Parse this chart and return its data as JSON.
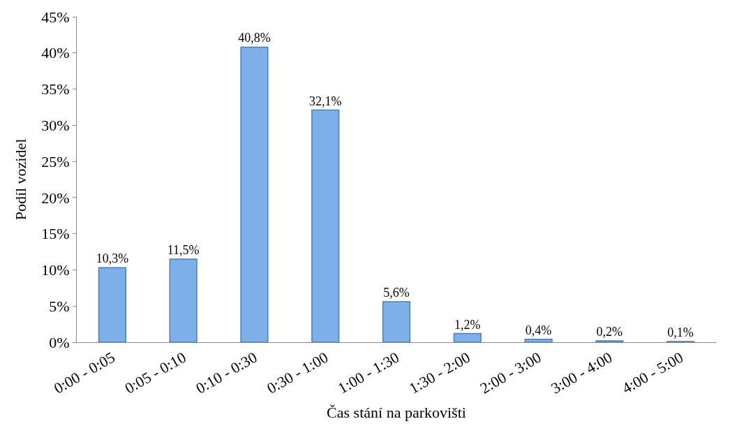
{
  "chart_data": {
    "type": "bar",
    "xlabel": "Čas stání na parkovišti",
    "ylabel": "Podíl vozidel",
    "categories": [
      "0:00 - 0:05",
      "0:05 - 0:10",
      "0:10 - 0:30",
      "0:30 - 1:00",
      "1:00 - 1:30",
      "1:30 - 2:00",
      "2:00 - 3:00",
      "3:00 - 4:00",
      "4:00 - 5:00"
    ],
    "values": [
      10.3,
      11.5,
      40.8,
      32.1,
      5.6,
      1.2,
      0.4,
      0.2,
      0.1
    ],
    "value_labels": [
      "10,3%",
      "11,5%",
      "40,8%",
      "32,1%",
      "5,6%",
      "1,2%",
      "0,4%",
      "0,2%",
      "0,1%"
    ],
    "color": "#7eb1ea",
    "ylim": [
      0,
      45
    ],
    "yticks": [
      {
        "value": 0,
        "label": "0%"
      },
      {
        "value": 5,
        "label": "5%"
      },
      {
        "value": 10,
        "label": "10%"
      },
      {
        "value": 15,
        "label": "15%"
      },
      {
        "value": 20,
        "label": "20%"
      },
      {
        "value": 25,
        "label": "25%"
      },
      {
        "value": 30,
        "label": "30%"
      },
      {
        "value": 35,
        "label": "35%"
      },
      {
        "value": 40,
        "label": "40%"
      },
      {
        "value": 45,
        "label": "45%"
      }
    ]
  }
}
